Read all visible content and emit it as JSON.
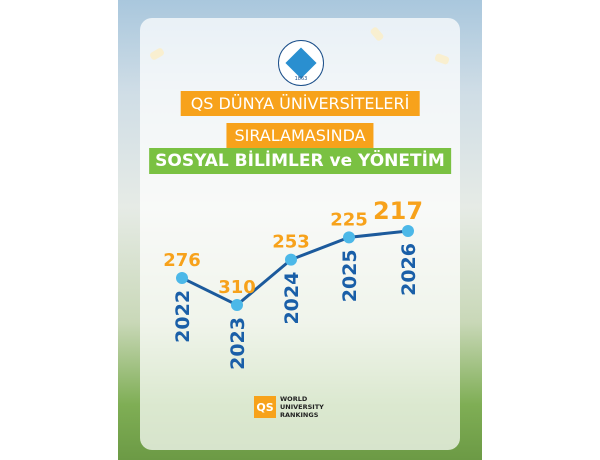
{
  "header": {
    "logo_year": "1863",
    "line1": "QS DÜNYA ÜNİVERSİTELERİ",
    "line2": "SIRALAMASINDA",
    "line3": "SOSYAL BİLİMLER ve YÖNETİM"
  },
  "footer": {
    "qs_mark": "QS",
    "qs_lines": [
      "WORLD",
      "UNIVERSITY",
      "RANKINGS"
    ]
  },
  "colors": {
    "orange": "#f7a21b",
    "green": "#7ac142",
    "line": "#1c5a9c",
    "point": "#4cb8e8",
    "year": "#1a5fa8"
  },
  "chart_data": {
    "type": "line",
    "title": "",
    "categories": [
      "2022",
      "2023",
      "2024",
      "2025",
      "2026"
    ],
    "values": [
      276,
      310,
      253,
      225,
      217
    ],
    "y_inverted": true,
    "grid": false
  }
}
